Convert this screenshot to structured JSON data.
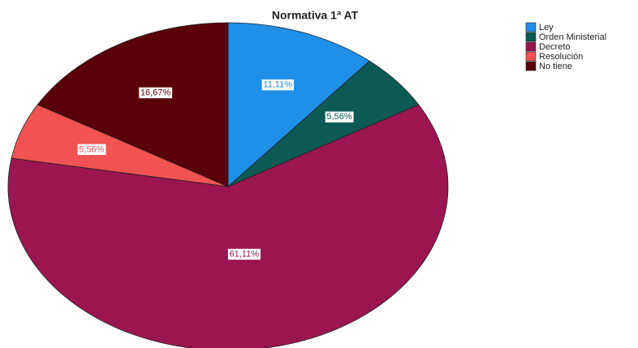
{
  "chart_data": {
    "type": "pie",
    "title": "Normativa 1ª AT",
    "categories": [
      "Ley",
      "Orden Ministerial",
      "Decreto",
      "Resolución",
      "No tiene"
    ],
    "values": [
      11.11,
      5.56,
      61.11,
      5.56,
      16.67
    ],
    "value_labels": [
      "11,11%",
      "5,56%",
      "61,11%",
      "5,56%",
      "16,67%"
    ],
    "colors": [
      "#1f8fe8",
      "#0b5a55",
      "#9b1550",
      "#f25252",
      "#5a0008"
    ],
    "legend": "top-right"
  }
}
